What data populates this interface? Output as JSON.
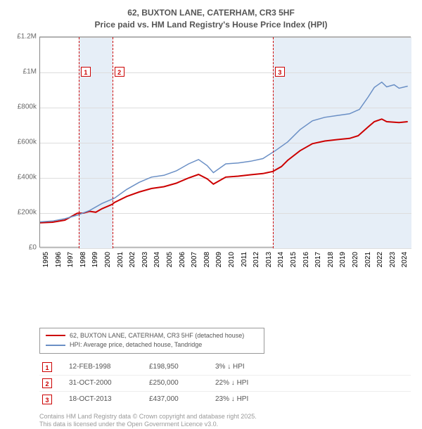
{
  "title": {
    "line1": "62, BUXTON LANE, CATERHAM, CR3 5HF",
    "line2": "Price paid vs. HM Land Registry's House Price Index (HPI)"
  },
  "chart": {
    "type": "line",
    "background_color": "#ffffff",
    "plot_border_color": "#888888",
    "grid_color": "#dddddd",
    "band_color": "#e6eef7",
    "tick_font_size": 10,
    "tick_color": "#666666",
    "y": {
      "min": 0,
      "max": 1200000,
      "ticks": [
        {
          "v": 0,
          "label": "£0"
        },
        {
          "v": 200000,
          "label": "£200k"
        },
        {
          "v": 400000,
          "label": "£400k"
        },
        {
          "v": 600000,
          "label": "£600k"
        },
        {
          "v": 800000,
          "label": "£800k"
        },
        {
          "v": 1000000,
          "label": "£1M"
        },
        {
          "v": 1200000,
          "label": "£1.2M"
        }
      ]
    },
    "x": {
      "min": 1995,
      "max": 2025,
      "ticks": [
        1995,
        1996,
        1997,
        1998,
        1999,
        2000,
        2001,
        2002,
        2003,
        2004,
        2005,
        2006,
        2007,
        2008,
        2009,
        2010,
        2011,
        2012,
        2013,
        2014,
        2015,
        2016,
        2017,
        2018,
        2019,
        2020,
        2021,
        2022,
        2023,
        2024
      ]
    },
    "bands": [
      {
        "from": 1998.12,
        "to": 2000.83
      },
      {
        "from": 2013.8,
        "to": 2025
      }
    ],
    "markers": [
      {
        "n": "1",
        "x": 1998.12,
        "box_y": 42
      },
      {
        "n": "2",
        "x": 2000.83,
        "box_y": 42
      },
      {
        "n": "3",
        "x": 2013.8,
        "box_y": 42
      }
    ],
    "series": [
      {
        "name": "price_paid",
        "color": "#cc0000",
        "width": 2,
        "points": [
          [
            1995,
            145000
          ],
          [
            1996,
            148000
          ],
          [
            1997,
            160000
          ],
          [
            1998,
            198950
          ],
          [
            1998.5,
            200000
          ],
          [
            1999,
            210000
          ],
          [
            1999.5,
            205000
          ],
          [
            2000,
            225000
          ],
          [
            2000.83,
            250000
          ],
          [
            2001,
            260000
          ],
          [
            2002,
            295000
          ],
          [
            2003,
            320000
          ],
          [
            2004,
            340000
          ],
          [
            2005,
            350000
          ],
          [
            2006,
            370000
          ],
          [
            2007,
            400000
          ],
          [
            2007.8,
            420000
          ],
          [
            2008.5,
            395000
          ],
          [
            2009,
            365000
          ],
          [
            2010,
            405000
          ],
          [
            2011,
            410000
          ],
          [
            2012,
            418000
          ],
          [
            2013,
            425000
          ],
          [
            2013.8,
            437000
          ],
          [
            2014.5,
            465000
          ],
          [
            2015,
            500000
          ],
          [
            2016,
            555000
          ],
          [
            2017,
            595000
          ],
          [
            2018,
            610000
          ],
          [
            2019,
            618000
          ],
          [
            2020,
            625000
          ],
          [
            2020.7,
            640000
          ],
          [
            2021.5,
            690000
          ],
          [
            2022,
            720000
          ],
          [
            2022.6,
            735000
          ],
          [
            2023,
            720000
          ],
          [
            2024,
            715000
          ],
          [
            2024.7,
            720000
          ]
        ]
      },
      {
        "name": "hpi",
        "color": "#6a8fc5",
        "width": 1.5,
        "points": [
          [
            1995,
            150000
          ],
          [
            1996,
            155000
          ],
          [
            1997,
            168000
          ],
          [
            1998,
            188000
          ],
          [
            1999,
            215000
          ],
          [
            2000,
            255000
          ],
          [
            2001,
            285000
          ],
          [
            2002,
            335000
          ],
          [
            2003,
            375000
          ],
          [
            2004,
            405000
          ],
          [
            2005,
            415000
          ],
          [
            2006,
            440000
          ],
          [
            2007,
            480000
          ],
          [
            2007.8,
            505000
          ],
          [
            2008.5,
            470000
          ],
          [
            2009,
            430000
          ],
          [
            2010,
            480000
          ],
          [
            2011,
            485000
          ],
          [
            2012,
            495000
          ],
          [
            2013,
            510000
          ],
          [
            2014,
            555000
          ],
          [
            2015,
            605000
          ],
          [
            2016,
            675000
          ],
          [
            2017,
            725000
          ],
          [
            2018,
            745000
          ],
          [
            2019,
            755000
          ],
          [
            2020,
            765000
          ],
          [
            2020.8,
            790000
          ],
          [
            2021.5,
            860000
          ],
          [
            2022,
            915000
          ],
          [
            2022.6,
            945000
          ],
          [
            2023,
            918000
          ],
          [
            2023.6,
            930000
          ],
          [
            2024,
            910000
          ],
          [
            2024.7,
            922000
          ]
        ]
      }
    ]
  },
  "legend": {
    "border_color": "#999999",
    "items": [
      {
        "color": "#cc0000",
        "width": 2,
        "label": "62, BUXTON LANE, CATERHAM, CR3 5HF (detached house)"
      },
      {
        "color": "#6a8fc5",
        "width": 1.5,
        "label": "HPI: Average price, detached house, Tandridge"
      }
    ]
  },
  "events": [
    {
      "n": "1",
      "date": "12-FEB-1998",
      "price": "£198,950",
      "pct": "3% ↓ HPI"
    },
    {
      "n": "2",
      "date": "31-OCT-2000",
      "price": "£250,000",
      "pct": "22% ↓ HPI"
    },
    {
      "n": "3",
      "date": "18-OCT-2013",
      "price": "£437,000",
      "pct": "23% ↓ HPI"
    }
  ],
  "footer": {
    "line1": "Contains HM Land Registry data © Crown copyright and database right 2025.",
    "line2": "This data is licensed under the Open Government Licence v3.0."
  }
}
